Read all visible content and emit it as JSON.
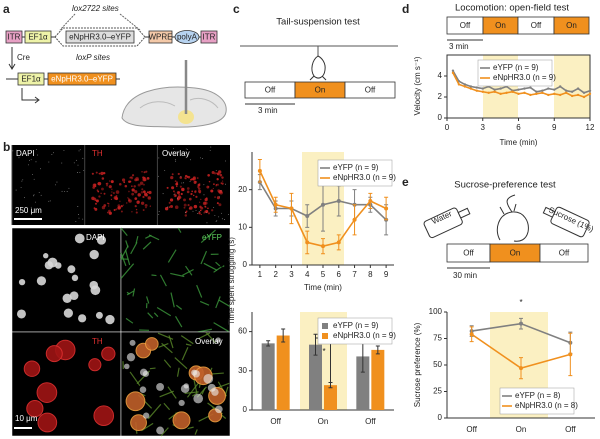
{
  "panel_labels": [
    "a",
    "b",
    "c",
    "d",
    "e"
  ],
  "construct": {
    "lox2722": "lox2722 sites",
    "loxp": "loxP sites",
    "cre": "Cre",
    "cassette": [
      "ITR",
      "EF1α",
      "eNpHR3.0–eYFP",
      "WPRE",
      "polyA",
      "ITR"
    ],
    "recombined": [
      "EF1α",
      "eNpHR3.0–eYFP"
    ]
  },
  "histology": {
    "low_mag": [
      "DAPI",
      "TH",
      "Overlay"
    ],
    "low_scale": "250 μm",
    "high_mag": [
      "DAPI",
      "eYFP",
      "TH",
      "Overlay"
    ],
    "high_scale": "10 μm"
  },
  "tail_suspension": {
    "title": "Tail-suspension test",
    "epochs": [
      "Off",
      "On",
      "Off"
    ],
    "scale": "3 min"
  },
  "open_field": {
    "title": "Locomotion: open-field test",
    "epochs": [
      "Off",
      "On",
      "Off",
      "On"
    ],
    "scale": "3 min"
  },
  "sucrose": {
    "title": "Sucrose-preference test",
    "bottles": [
      "Water",
      "Sucrose (1%)"
    ],
    "epochs": [
      "Off",
      "On",
      "Off"
    ],
    "scale": "30 min"
  },
  "chart_data": [
    {
      "type": "line",
      "xlabel": "Time (min)",
      "ylabel": "Time spent struggling (s)",
      "x": [
        1,
        2,
        3,
        4,
        5,
        6,
        7,
        8,
        9
      ],
      "xlim": [
        0.5,
        9.5
      ],
      "xticks": [
        1,
        2,
        3,
        4,
        5,
        6,
        7,
        8,
        9
      ],
      "ylim": [
        0,
        30
      ],
      "yticks": [
        0,
        10,
        20
      ],
      "series": [
        {
          "name": "eYFP (n = 9)",
          "color": "#808080",
          "values": [
            22,
            15,
            15,
            13,
            16,
            17,
            16,
            16,
            12
          ],
          "errors": [
            2,
            2,
            2,
            3,
            7,
            4,
            4,
            2,
            4
          ]
        },
        {
          "name": "eNpHR3.0 (n = 9)",
          "color": "#f0901e",
          "values": [
            25,
            16,
            15,
            6,
            5,
            6,
            12,
            17,
            15
          ],
          "errors": [
            3,
            2,
            4,
            3,
            2,
            2,
            4,
            2,
            3
          ]
        }
      ]
    },
    {
      "type": "bar",
      "categories": [
        "Off",
        "On",
        "Off"
      ],
      "ylim": [
        0,
        75
      ],
      "yticks": [
        0,
        30,
        60
      ],
      "annotation": "*",
      "series": [
        {
          "name": "eYFP (n = 9)",
          "color": "#808080",
          "values": [
            51,
            50,
            41
          ],
          "errors": [
            2,
            8,
            12
          ]
        },
        {
          "name": "eNpHR3.0 (n = 9)",
          "color": "#f0901e",
          "values": [
            57,
            19,
            46
          ],
          "errors": [
            5,
            2,
            3
          ]
        }
      ]
    },
    {
      "type": "line",
      "xlabel": "Time (min)",
      "ylabel": "Velocity (cm s⁻¹)",
      "x": [
        0.5,
        1,
        1.5,
        2,
        2.5,
        3,
        3.5,
        4,
        4.5,
        5,
        5.5,
        6,
        6.5,
        7,
        7.5,
        8,
        8.5,
        9,
        9.5,
        10,
        10.5,
        11,
        11.5,
        12
      ],
      "xlim": [
        0,
        12
      ],
      "xticks": [
        0,
        3,
        6,
        9,
        12
      ],
      "ylim": [
        0,
        6
      ],
      "yticks": [
        0,
        2,
        4
      ],
      "series": [
        {
          "name": "eYFP (n = 9)",
          "color": "#808080",
          "values": [
            4.5,
            3.5,
            3.2,
            3.0,
            2.9,
            2.8,
            3.0,
            2.7,
            2.8,
            3.0,
            2.6,
            2.7,
            2.8,
            2.9,
            2.5,
            2.6,
            2.8,
            2.7,
            3.0,
            2.6,
            2.5,
            2.8,
            2.4,
            2.6
          ]
        },
        {
          "name": "eNpHR3.0 (n = 9)",
          "color": "#f0901e",
          "values": [
            4.3,
            3.2,
            3.0,
            2.8,
            2.6,
            2.5,
            2.4,
            2.5,
            2.3,
            2.4,
            2.5,
            2.3,
            2.4,
            2.2,
            2.3,
            2.4,
            2.2,
            2.3,
            2.2,
            2.4,
            2.1,
            2.2,
            2.0,
            2.3
          ]
        }
      ]
    },
    {
      "type": "line",
      "ylabel": "Sucrose preference (%)",
      "categories": [
        "Off",
        "On",
        "Off"
      ],
      "ylim": [
        0,
        100
      ],
      "yticks": [
        0,
        25,
        50,
        75,
        100
      ],
      "annotation": "*",
      "series": [
        {
          "name": "eYFP (n = 8)",
          "color": "#808080",
          "values": [
            82,
            89,
            71
          ],
          "errors": [
            5,
            5,
            10
          ]
        },
        {
          "name": "eNpHR3.0 (n = 8)",
          "color": "#f0901e",
          "values": [
            79,
            47,
            60
          ],
          "errors": [
            7,
            10,
            20
          ]
        }
      ]
    }
  ]
}
